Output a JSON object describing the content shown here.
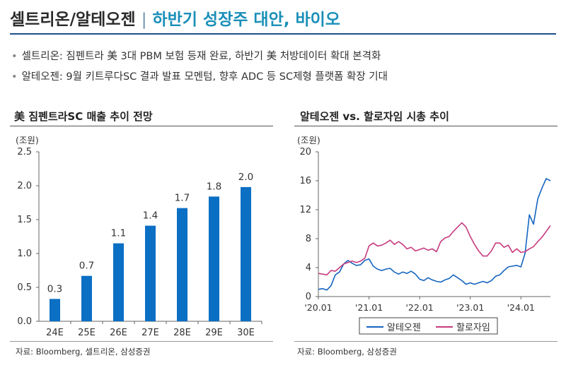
{
  "header": {
    "title_main": "셀트리온/알테오젠",
    "title_separator": "|",
    "title_sub": "하반기 성장주 대안, 바이오"
  },
  "bullets": [
    "셀트리온: 짐펜트라 美 3대 PBM 보험 등재 완료, 하반기 美 처방데이터 확대 본격화",
    "알테오젠: 9월 키트루다SC 결과 발표 모멘텀, 향후 ADC 등 SC제형 플랫폼 확장 기대"
  ],
  "left_chart": {
    "title": "美 짐펜트라SC 매출 추이 전망",
    "unit": "(조원)",
    "source": "자료: Bloomberg, 셀트리온, 삼성증권"
  },
  "right_chart": {
    "title": "알테오젠 vs. 할로자임 시총 추이",
    "unit": "(조원)",
    "source": "자료: Bloomberg, 삼성증권"
  },
  "chart_data": [
    {
      "type": "bar",
      "title": "美 짐펜트라SC 매출 추이 전망",
      "ylabel": "(조원)",
      "categories": [
        "24E",
        "25E",
        "26E",
        "27E",
        "28E",
        "29E",
        "30E"
      ],
      "values": [
        0.3,
        0.7,
        1.1,
        1.4,
        1.7,
        1.8,
        2.0
      ],
      "bar_values": [
        0.33,
        0.67,
        1.15,
        1.41,
        1.67,
        1.84,
        1.98
      ],
      "data_labels": [
        "0.3",
        "0.7",
        "1.1",
        "1.4",
        "1.7",
        "1.8",
        "2.0"
      ],
      "ylim": [
        0,
        2.5
      ],
      "yticks": [
        "0.0",
        "0.5",
        "1.0",
        "1.5",
        "2.0",
        "2.5"
      ],
      "grid": false,
      "colors": {
        "bar": "#0b6fc4"
      }
    },
    {
      "type": "line",
      "title": "알테오젠 vs. 할로자임 시총 추이",
      "ylabel": "(조원)",
      "x_ticks": [
        "'20.01",
        "'21.01",
        "'22.01",
        "'23.01",
        "'24.01"
      ],
      "xlim": [
        "2020-01",
        "2024-08"
      ],
      "ylim": [
        0,
        20
      ],
      "yticks": [
        "0",
        "4",
        "8",
        "12",
        "16",
        "20"
      ],
      "grid": false,
      "legend_position": "bottom",
      "series": [
        {
          "name": "알테오젠",
          "color": "#1565c0",
          "points": [
            [
              "2020-01",
              1.0
            ],
            [
              "2020-02",
              1.1
            ],
            [
              "2020-03",
              0.9
            ],
            [
              "2020-04",
              1.5
            ],
            [
              "2020-05",
              3.0
            ],
            [
              "2020-06",
              3.4
            ],
            [
              "2020-07",
              4.5
            ],
            [
              "2020-08",
              5.0
            ],
            [
              "2020-09",
              4.6
            ],
            [
              "2020-10",
              4.3
            ],
            [
              "2020-11",
              4.4
            ],
            [
              "2020-12",
              5.0
            ],
            [
              "2021-01",
              5.2
            ],
            [
              "2021-02",
              4.2
            ],
            [
              "2021-03",
              3.8
            ],
            [
              "2021-04",
              3.6
            ],
            [
              "2021-05",
              3.8
            ],
            [
              "2021-06",
              3.9
            ],
            [
              "2021-07",
              3.4
            ],
            [
              "2021-08",
              3.1
            ],
            [
              "2021-09",
              3.4
            ],
            [
              "2021-10",
              3.2
            ],
            [
              "2021-11",
              3.5
            ],
            [
              "2021-12",
              3.1
            ],
            [
              "2022-01",
              2.4
            ],
            [
              "2022-02",
              2.2
            ],
            [
              "2022-03",
              2.6
            ],
            [
              "2022-04",
              2.3
            ],
            [
              "2022-05",
              2.1
            ],
            [
              "2022-06",
              2.0
            ],
            [
              "2022-07",
              2.3
            ],
            [
              "2022-08",
              2.5
            ],
            [
              "2022-09",
              3.0
            ],
            [
              "2022-10",
              2.6
            ],
            [
              "2022-11",
              2.2
            ],
            [
              "2022-12",
              1.7
            ],
            [
              "2023-01",
              1.9
            ],
            [
              "2023-02",
              1.7
            ],
            [
              "2023-03",
              1.9
            ],
            [
              "2023-04",
              2.1
            ],
            [
              "2023-05",
              1.9
            ],
            [
              "2023-06",
              2.2
            ],
            [
              "2023-07",
              2.8
            ],
            [
              "2023-08",
              3.0
            ],
            [
              "2023-09",
              3.6
            ],
            [
              "2023-10",
              4.1
            ],
            [
              "2023-11",
              4.2
            ],
            [
              "2023-12",
              4.3
            ],
            [
              "2024-01",
              4.1
            ],
            [
              "2024-02",
              6.0
            ],
            [
              "2024-03",
              11.3
            ],
            [
              "2024-04",
              10.0
            ],
            [
              "2024-05",
              13.5
            ],
            [
              "2024-06",
              15.0
            ],
            [
              "2024-07",
              16.3
            ],
            [
              "2024-08",
              16.0
            ]
          ]
        },
        {
          "name": "할로자임",
          "color": "#c73a7e",
          "points": [
            [
              "2020-01",
              3.2
            ],
            [
              "2020-02",
              3.1
            ],
            [
              "2020-03",
              3.0
            ],
            [
              "2020-04",
              3.6
            ],
            [
              "2020-05",
              3.5
            ],
            [
              "2020-06",
              4.0
            ],
            [
              "2020-07",
              4.5
            ],
            [
              "2020-08",
              4.7
            ],
            [
              "2020-09",
              4.9
            ],
            [
              "2020-10",
              4.7
            ],
            [
              "2020-11",
              4.9
            ],
            [
              "2020-12",
              5.3
            ],
            [
              "2021-01",
              7.0
            ],
            [
              "2021-02",
              7.4
            ],
            [
              "2021-03",
              7.0
            ],
            [
              "2021-04",
              7.1
            ],
            [
              "2021-05",
              7.4
            ],
            [
              "2021-06",
              7.8
            ],
            [
              "2021-07",
              7.2
            ],
            [
              "2021-08",
              7.6
            ],
            [
              "2021-09",
              7.2
            ],
            [
              "2021-10",
              6.6
            ],
            [
              "2021-11",
              6.8
            ],
            [
              "2021-12",
              6.3
            ],
            [
              "2022-01",
              6.5
            ],
            [
              "2022-02",
              6.7
            ],
            [
              "2022-03",
              6.4
            ],
            [
              "2022-04",
              6.6
            ],
            [
              "2022-05",
              6.2
            ],
            [
              "2022-06",
              7.6
            ],
            [
              "2022-07",
              8.1
            ],
            [
              "2022-08",
              8.3
            ],
            [
              "2022-09",
              9.0
            ],
            [
              "2022-10",
              9.6
            ],
            [
              "2022-11",
              10.2
            ],
            [
              "2022-12",
              9.6
            ],
            [
              "2023-01",
              8.3
            ],
            [
              "2023-02",
              7.2
            ],
            [
              "2023-03",
              6.3
            ],
            [
              "2023-04",
              5.6
            ],
            [
              "2023-05",
              5.6
            ],
            [
              "2023-06",
              6.3
            ],
            [
              "2023-07",
              7.4
            ],
            [
              "2023-08",
              7.4
            ],
            [
              "2023-09",
              6.8
            ],
            [
              "2023-10",
              7.1
            ],
            [
              "2023-11",
              6.1
            ],
            [
              "2023-12",
              6.6
            ],
            [
              "2024-01",
              6.1
            ],
            [
              "2024-02",
              6.2
            ],
            [
              "2024-03",
              6.6
            ],
            [
              "2024-04",
              6.9
            ],
            [
              "2024-05",
              7.6
            ],
            [
              "2024-06",
              8.2
            ],
            [
              "2024-07",
              9.0
            ],
            [
              "2024-08",
              9.8
            ]
          ]
        }
      ]
    }
  ]
}
